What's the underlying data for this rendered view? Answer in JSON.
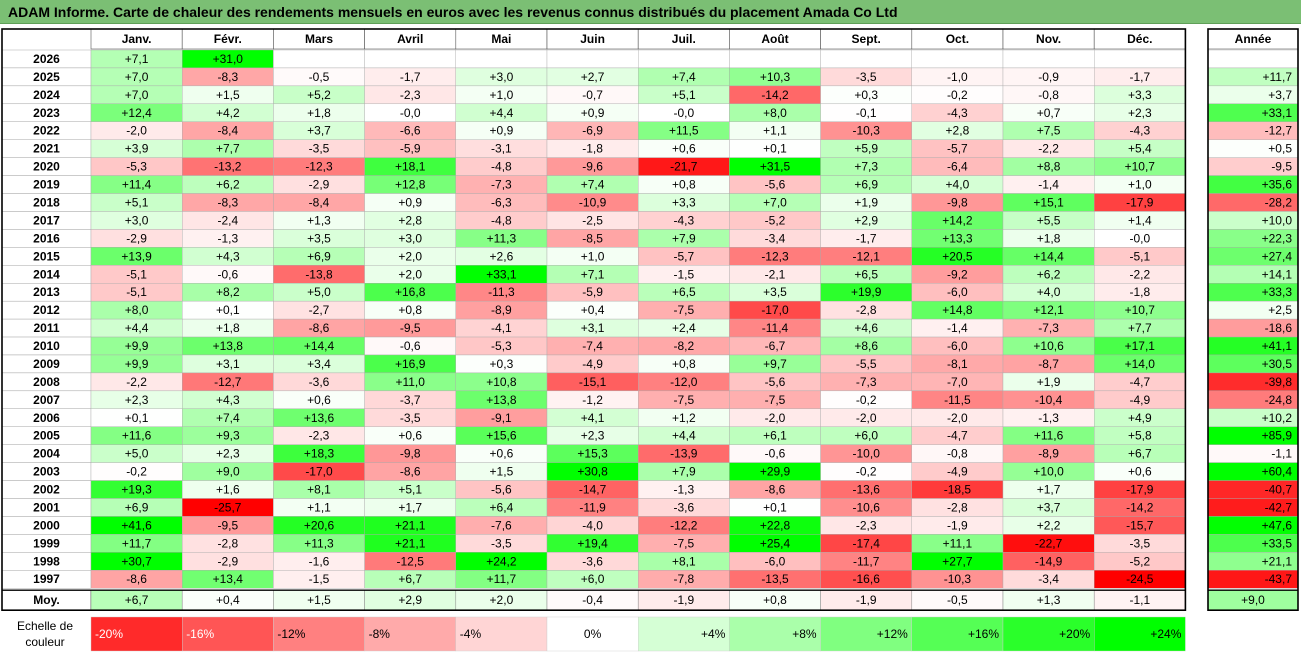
{
  "title": "ADAM Informe. Carte de chaleur des rendements mensuels en euros avec les revenus connus distribués du placement Amada Co Ltd",
  "chart_data": {
    "type": "heatmap",
    "columns": [
      "Janv.",
      "Févr.",
      "Mars",
      "Avril",
      "Mai",
      "Juin",
      "Juil.",
      "Août",
      "Sept.",
      "Oct.",
      "Nov.",
      "Déc."
    ],
    "annual_header": "Année",
    "rows": [
      {
        "year": "2026",
        "values": [
          "+7,1",
          "+31,0",
          "",
          "",
          "",
          "",
          "",
          "",
          "",
          "",
          "",
          ""
        ],
        "annual": ""
      },
      {
        "year": "2025",
        "values": [
          "+7,0",
          "-8,3",
          "-0,5",
          "-1,7",
          "+3,0",
          "+2,7",
          "+7,4",
          "+10,3",
          "-3,5",
          "-1,0",
          "-0,9",
          "-1,7"
        ],
        "annual": "+11,7"
      },
      {
        "year": "2024",
        "values": [
          "+7,0",
          "+1,5",
          "+5,2",
          "-2,3",
          "+1,0",
          "-0,7",
          "+5,1",
          "-14,2",
          "+0,3",
          "-0,2",
          "-0,8",
          "+3,3"
        ],
        "annual": "+3,7"
      },
      {
        "year": "2023",
        "values": [
          "+12,4",
          "+4,2",
          "+1,8",
          "-0,0",
          "+4,4",
          "+0,9",
          "-0,0",
          "+8,0",
          "-0,1",
          "-4,3",
          "+0,7",
          "+2,3"
        ],
        "annual": "+33,1"
      },
      {
        "year": "2022",
        "values": [
          "-2,0",
          "-8,4",
          "+3,7",
          "-6,6",
          "+0,9",
          "-6,9",
          "+11,5",
          "+1,1",
          "-10,3",
          "+2,8",
          "+7,5",
          "-4,3"
        ],
        "annual": "-12,7"
      },
      {
        "year": "2021",
        "values": [
          "+3,9",
          "+7,7",
          "-3,5",
          "-5,9",
          "-3,1",
          "-1,8",
          "+0,6",
          "+0,1",
          "+5,9",
          "-5,7",
          "-2,2",
          "+5,4"
        ],
        "annual": "+0,5"
      },
      {
        "year": "2020",
        "values": [
          "-5,3",
          "-13,2",
          "-12,3",
          "+18,1",
          "-4,8",
          "-9,6",
          "-21,7",
          "+31,5",
          "+7,3",
          "-6,4",
          "+8,8",
          "+10,7"
        ],
        "annual": "-9,5"
      },
      {
        "year": "2019",
        "values": [
          "+11,4",
          "+6,2",
          "-2,9",
          "+12,8",
          "-7,3",
          "+7,4",
          "+0,8",
          "-5,6",
          "+6,9",
          "+4,0",
          "-1,4",
          "+1,0"
        ],
        "annual": "+35,6"
      },
      {
        "year": "2018",
        "values": [
          "+5,1",
          "-8,3",
          "-8,4",
          "+0,9",
          "-6,3",
          "-10,9",
          "+3,3",
          "+7,0",
          "+1,9",
          "-9,8",
          "+15,1",
          "-17,9"
        ],
        "annual": "-28,2"
      },
      {
        "year": "2017",
        "values": [
          "+3,0",
          "-2,4",
          "+1,3",
          "+2,8",
          "-4,8",
          "-2,5",
          "-4,3",
          "-5,2",
          "+2,9",
          "+14,2",
          "+5,5",
          "+1,4"
        ],
        "annual": "+10,0"
      },
      {
        "year": "2016",
        "values": [
          "-2,9",
          "-1,3",
          "+3,5",
          "+3,0",
          "+11,3",
          "-8,5",
          "+7,9",
          "-3,4",
          "-1,7",
          "+13,3",
          "+1,8",
          "-0,0"
        ],
        "annual": "+22,3"
      },
      {
        "year": "2015",
        "values": [
          "+13,9",
          "+4,3",
          "+6,9",
          "+2,0",
          "+2,6",
          "+1,0",
          "-5,7",
          "-12,3",
          "-12,1",
          "+20,5",
          "+14,4",
          "-5,1"
        ],
        "annual": "+27,4"
      },
      {
        "year": "2014",
        "values": [
          "-5,1",
          "-0,6",
          "-13,8",
          "+2,0",
          "+33,1",
          "+7,1",
          "-1,5",
          "-2,1",
          "+6,5",
          "-9,2",
          "+6,2",
          "-2,2"
        ],
        "annual": "+14,1"
      },
      {
        "year": "2013",
        "values": [
          "-5,1",
          "+8,2",
          "+5,0",
          "+16,8",
          "-11,3",
          "-5,9",
          "+6,5",
          "+3,5",
          "+19,9",
          "-6,0",
          "+4,0",
          "-1,8"
        ],
        "annual": "+33,3"
      },
      {
        "year": "2012",
        "values": [
          "+8,0",
          "+0,1",
          "-2,7",
          "+0,8",
          "-8,9",
          "+0,4",
          "-7,5",
          "-17,0",
          "-2,8",
          "+14,8",
          "+12,1",
          "+10,7"
        ],
        "annual": "+2,5"
      },
      {
        "year": "2011",
        "values": [
          "+4,4",
          "+1,8",
          "-8,6",
          "-9,5",
          "-4,1",
          "+3,1",
          "+2,4",
          "-11,4",
          "+4,6",
          "-1,4",
          "-7,3",
          "+7,7"
        ],
        "annual": "-18,6"
      },
      {
        "year": "2010",
        "values": [
          "+9,9",
          "+13,8",
          "+14,4",
          "-0,6",
          "-5,3",
          "-7,4",
          "-8,2",
          "-6,7",
          "+8,6",
          "-6,0",
          "+10,6",
          "+17,1"
        ],
        "annual": "+41,1"
      },
      {
        "year": "2009",
        "values": [
          "+9,9",
          "+3,1",
          "+3,4",
          "+16,9",
          "+0,3",
          "-4,9",
          "+0,8",
          "+9,7",
          "-5,5",
          "-8,1",
          "-8,7",
          "+14,0"
        ],
        "annual": "+30,5"
      },
      {
        "year": "2008",
        "values": [
          "-2,2",
          "-12,7",
          "-3,6",
          "+11,0",
          "+10,8",
          "-15,1",
          "-12,0",
          "-5,6",
          "-7,3",
          "-7,0",
          "+1,9",
          "-4,7"
        ],
        "annual": "-39,8"
      },
      {
        "year": "2007",
        "values": [
          "+2,3",
          "+4,3",
          "+0,6",
          "-3,7",
          "+13,8",
          "-1,2",
          "-7,5",
          "-7,5",
          "-0,2",
          "-11,5",
          "-10,4",
          "-4,9"
        ],
        "annual": "-24,8"
      },
      {
        "year": "2006",
        "values": [
          "+0,1",
          "+7,4",
          "+13,6",
          "-3,5",
          "-9,1",
          "+4,1",
          "+1,2",
          "-2,0",
          "-2,0",
          "-2,0",
          "-1,3",
          "+4,9"
        ],
        "annual": "+10,2"
      },
      {
        "year": "2005",
        "values": [
          "+11,6",
          "+9,3",
          "-2,3",
          "+0,6",
          "+15,6",
          "+2,3",
          "+4,4",
          "+6,1",
          "+6,0",
          "-4,7",
          "+11,6",
          "+5,8"
        ],
        "annual": "+85,9"
      },
      {
        "year": "2004",
        "values": [
          "+5,0",
          "+2,3",
          "+18,3",
          "-9,8",
          "+0,6",
          "+15,3",
          "-13,9",
          "-0,6",
          "-10,0",
          "-0,8",
          "-8,9",
          "+6,7"
        ],
        "annual": "-1,1"
      },
      {
        "year": "2003",
        "values": [
          "-0,2",
          "+9,0",
          "-17,0",
          "-8,6",
          "+1,5",
          "+30,8",
          "+7,9",
          "+29,9",
          "-0,2",
          "-4,9",
          "+10,0",
          "+0,6"
        ],
        "annual": "+60,4"
      },
      {
        "year": "2002",
        "values": [
          "+19,3",
          "+1,6",
          "+8,1",
          "+5,1",
          "-5,6",
          "-14,7",
          "-1,3",
          "-8,6",
          "-13,6",
          "-18,5",
          "+1,7",
          "-17,9"
        ],
        "annual": "-40,7"
      },
      {
        "year": "2001",
        "values": [
          "+6,9",
          "-25,7",
          "+1,1",
          "+1,7",
          "+6,4",
          "-11,9",
          "-3,6",
          "+0,1",
          "-10,6",
          "-2,8",
          "+3,7",
          "-14,2"
        ],
        "annual": "-42,7"
      },
      {
        "year": "2000",
        "values": [
          "+41,6",
          "-9,5",
          "+20,6",
          "+21,1",
          "-7,6",
          "-4,0",
          "-12,2",
          "+22,8",
          "-2,3",
          "-1,9",
          "+2,2",
          "-15,7"
        ],
        "annual": "+47,6"
      },
      {
        "year": "1999",
        "values": [
          "+11,7",
          "-2,8",
          "+11,3",
          "+21,1",
          "-3,5",
          "+19,4",
          "-7,5",
          "+25,4",
          "-17,4",
          "+11,1",
          "-22,7",
          "-3,5"
        ],
        "annual": "+33,5"
      },
      {
        "year": "1998",
        "values": [
          "+30,7",
          "-2,9",
          "-1,6",
          "-12,5",
          "+24,2",
          "-3,6",
          "+8,1",
          "-6,0",
          "-11,7",
          "+27,7",
          "-14,9",
          "-5,2"
        ],
        "annual": "+21,1"
      },
      {
        "year": "1997",
        "values": [
          "-8,6",
          "+13,4",
          "-1,5",
          "+6,7",
          "+11,7",
          "+6,0",
          "-7,8",
          "-13,5",
          "-16,6",
          "-10,3",
          "-3,4",
          "-24,5"
        ],
        "annual": "-43,7"
      }
    ],
    "average": {
      "label": "Moy.",
      "values": [
        "+6,7",
        "+0,4",
        "+1,5",
        "+2,9",
        "+2,0",
        "-0,4",
        "-1,9",
        "+0,8",
        "-1,9",
        "-0,5",
        "+1,3",
        "-1,1"
      ],
      "annual": "+9,0"
    },
    "legend": {
      "label": "Echelle de couleur",
      "steps": [
        {
          "text": "-20%",
          "value": -20
        },
        {
          "text": "-16%",
          "value": -16
        },
        {
          "text": "-12%",
          "value": -12
        },
        {
          "text": "-8%",
          "value": -8
        },
        {
          "text": "-4%",
          "value": -4
        },
        {
          "text": "0%",
          "value": 0
        },
        {
          "text": "+4%",
          "value": 4
        },
        {
          "text": "+8%",
          "value": 8
        },
        {
          "text": "+12%",
          "value": 12
        },
        {
          "text": "+16%",
          "value": 16
        },
        {
          "text": "+20%",
          "value": 20
        },
        {
          "text": "+24%",
          "value": 24
        }
      ]
    },
    "colors": {
      "negative_max": "#ff0000",
      "neutral": "#ffffff",
      "positive_max": "#00ff00",
      "title_bar": "#7bbf74"
    }
  }
}
